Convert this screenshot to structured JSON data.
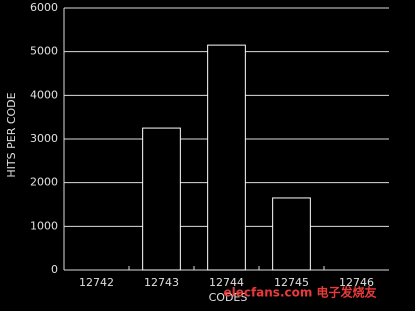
{
  "chart_data": {
    "type": "bar",
    "categories": [
      "12742",
      "12743",
      "12744",
      "12745",
      "12746"
    ],
    "values": [
      0,
      3250,
      5150,
      1650,
      0
    ],
    "color": "#000000",
    "edge_color": "#ffffff",
    "ylim": [
      0,
      6000
    ],
    "yticks": [
      0,
      1000,
      2000,
      3000,
      4000,
      5000,
      6000
    ],
    "grid": true,
    "ylabel": "HITS PER CODE",
    "xlabel": "CODES",
    "watermark": "elecfans.com 电子发烧友"
  }
}
